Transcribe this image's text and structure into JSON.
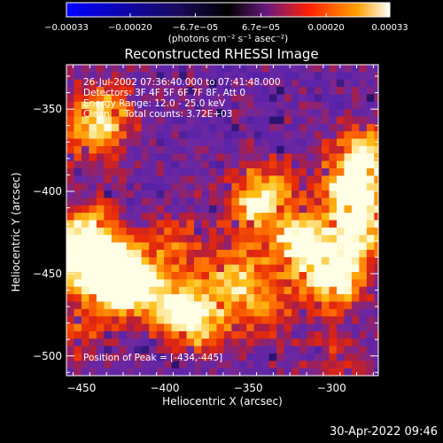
{
  "chart_data": {
    "type": "heatmap",
    "title": "Reconstructed RHESSI Image",
    "xlabel": "Heliocentric X (arcsec)",
    "ylabel": "Heliocentric Y (arcsec)",
    "xlim": [
      -459,
      -272
    ],
    "ylim": [
      -512,
      -323
    ],
    "xticks": [
      -450,
      -400,
      -350,
      -300
    ],
    "xtick_labels": [
      "−450",
      "−400",
      "−350",
      "−300"
    ],
    "yticks": [
      -350,
      -400,
      -450,
      -500
    ],
    "ytick_labels": [
      "−350",
      "−400",
      "−450",
      "−500"
    ],
    "colorbar": {
      "range": [
        -0.00033,
        0.00033
      ],
      "tick_labels": [
        "−0.00033",
        "−0.00020",
        "−6.7e−05",
        "6.7e−05",
        "0.00020",
        "0.00033"
      ],
      "tick_values": [
        -0.00033,
        -0.0002,
        -6.7e-05,
        6.7e-05,
        0.0002,
        0.00033
      ],
      "unit_label": "(photons cm⁻² s⁻¹ asec⁻²)",
      "colormap": [
        "#0000ff",
        "#000000",
        "#5a1a9a",
        "#ff2a00",
        "#ff9c00",
        "#ffffff"
      ]
    },
    "annotations": [
      "26-Jul-2002 07:36:40.000 to 07:41:48.000",
      "Detectors: 3F 4F 5F 6F 7F 8F, Att 0",
      "Energy Range: 12.0 - 25.0 keV",
      "Clean     Total counts: 3.72E+03"
    ],
    "peak_label": "Position of Peak = [-434,-445]",
    "peak_position": [
      -434,
      -445
    ],
    "bright_features": [
      {
        "x": -435,
        "y": -445,
        "intensity": 1.0
      },
      {
        "x": -425,
        "y": -455,
        "intensity": 0.85
      },
      {
        "x": -395,
        "y": -468,
        "intensity": 0.7
      },
      {
        "x": -380,
        "y": -478,
        "intensity": 0.6
      },
      {
        "x": -340,
        "y": -470,
        "intensity": 0.45
      },
      {
        "x": -320,
        "y": -430,
        "intensity": 0.9
      },
      {
        "x": -300,
        "y": -450,
        "intensity": 0.95
      },
      {
        "x": -285,
        "y": -420,
        "intensity": 0.75
      },
      {
        "x": -290,
        "y": -395,
        "intensity": 0.85
      },
      {
        "x": -282,
        "y": -375,
        "intensity": 0.6
      },
      {
        "x": -360,
        "y": -450,
        "intensity": 0.65
      },
      {
        "x": -350,
        "y": -410,
        "intensity": 0.5
      },
      {
        "x": -340,
        "y": -395,
        "intensity": 0.45
      },
      {
        "x": -450,
        "y": -420,
        "intensity": 0.55
      },
      {
        "x": -455,
        "y": -440,
        "intensity": 0.75
      },
      {
        "x": -440,
        "y": -350,
        "intensity": 0.55
      },
      {
        "x": -445,
        "y": -365,
        "intensity": 0.4
      },
      {
        "x": -455,
        "y": -485,
        "intensity": 0.35
      },
      {
        "x": -395,
        "y": -430,
        "intensity": 0.4
      },
      {
        "x": -300,
        "y": -500,
        "intensity": 0.25
      }
    ]
  },
  "footer": {
    "date": "30-Apr-2022 09:46"
  }
}
